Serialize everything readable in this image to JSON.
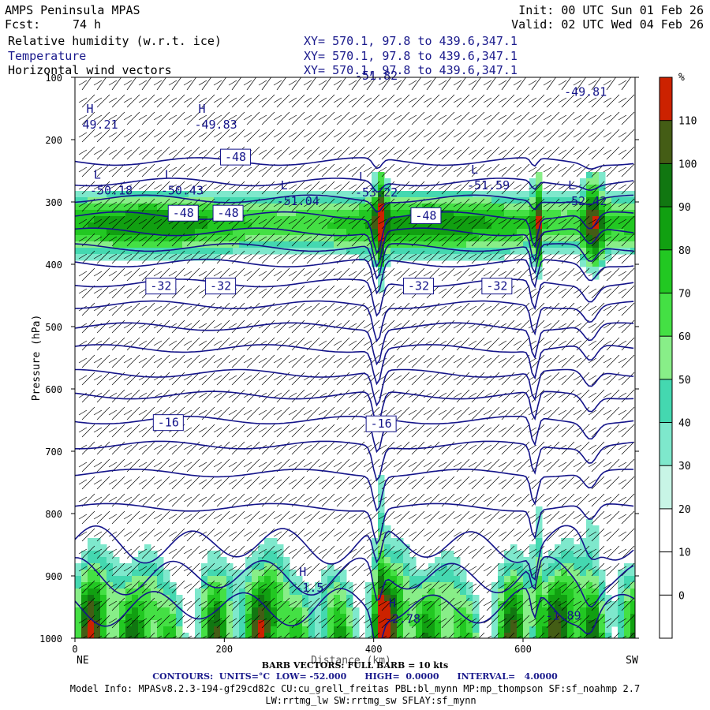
{
  "header": {
    "model": "AMPS Peninsula MPAS",
    "fcst_label": "Fcst:",
    "fcst_value": "74 h",
    "init": "Init: 00 UTC Sun 01 Feb 26",
    "valid": "Valid: 02 UTC Wed 04 Feb 26",
    "fields": [
      {
        "name": "Relative humidity (w.r.t. ice)",
        "xy": "XY= 570.1, 97.8 to 439.6,347.1"
      },
      {
        "name": "Temperature",
        "xy": "XY= 570.1, 97.8 to 439.6,347.1"
      },
      {
        "name": "Horizontal wind vectors",
        "xy": "XY= 570.1, 97.8 to 439.6,347.1"
      }
    ]
  },
  "chart_data": {
    "type": "heatmap",
    "ylabel": "Pressure (hPa)",
    "xlabel": "Distance (km)",
    "x_ticks": [
      0,
      200,
      400,
      600
    ],
    "y_ticks": [
      100,
      200,
      300,
      400,
      500,
      600,
      700,
      800,
      900,
      1000
    ],
    "xlim": [
      0,
      750
    ],
    "ylim": [
      1000,
      100
    ],
    "x_end_labels": {
      "left": "NE",
      "right": "SW"
    },
    "colorbar": {
      "unit": "%",
      "levels": [
        0,
        10,
        20,
        30,
        40,
        50,
        60,
        70,
        80,
        90,
        100,
        110
      ],
      "colors": [
        "#ffffff",
        "#ffffff",
        "#ffffff",
        "#c8f5e6",
        "#7ee8cc",
        "#44d8b0",
        "#88ee88",
        "#44e044",
        "#22c822",
        "#11a011",
        "#117711",
        "#445d15",
        "#cc2200"
      ]
    },
    "temperature_labels": [
      {
        "text": "-48",
        "x": 215,
        "p": 228
      },
      {
        "text": "-48",
        "x": 145,
        "p": 318
      },
      {
        "text": "-48",
        "x": 205,
        "p": 318
      },
      {
        "text": "-48",
        "x": 470,
        "p": 322
      },
      {
        "text": "-32",
        "x": 115,
        "p": 435
      },
      {
        "text": "-32",
        "x": 195,
        "p": 435
      },
      {
        "text": "-32",
        "x": 460,
        "p": 435
      },
      {
        "text": "-32",
        "x": 565,
        "p": 435
      },
      {
        "text": "-16",
        "x": 125,
        "p": 654
      },
      {
        "text": "-16",
        "x": 410,
        "p": 656
      }
    ],
    "extrema": [
      {
        "type": "H",
        "value": "49.21",
        "x": 10,
        "p": 182
      },
      {
        "type": "H",
        "value": "-49.83",
        "x": 160,
        "p": 182
      },
      {
        "type": "L",
        "value": "-50.18",
        "x": 20,
        "p": 288
      },
      {
        "type": "L",
        "value": "-50.43",
        "x": 115,
        "p": 288
      },
      {
        "type": "L",
        "value": "-51.04",
        "x": 270,
        "p": 305
      },
      {
        "type": "L",
        "value": "-53.22",
        "x": 375,
        "p": 291
      },
      {
        "type": "L",
        "value": "-51.59",
        "x": 525,
        "p": 280
      },
      {
        "type": "L",
        "value": "-52.42",
        "x": 655,
        "p": 305
      },
      {
        "type": "",
        "value": "-51.82",
        "x": 375,
        "p": 104
      },
      {
        "type": "",
        "value": "-49.81",
        "x": 655,
        "p": 130
      },
      {
        "type": "H",
        "value": "-1.5",
        "x": 295,
        "p": 925
      },
      {
        "type": "H",
        "value": "-2.78",
        "x": 415,
        "p": 975
      },
      {
        "type": "",
        "value": "-1.89",
        "x": 630,
        "p": 970
      }
    ]
  },
  "footer": {
    "barb": "BARB VECTORS: FULL BARB = 10 kts",
    "contours": "CONTOURS:  UNITS=°C  LOW= -52.000      HIGH=  0.0000      INTERVAL=   4.0000",
    "model_info": "Model Info: MPASv8.2.3-194-gf29cd82c CU:cu_grell_freitas PBL:bl_mynn MP:mp_thompson SF:sf_noahmp 2.7",
    "model_info2": "LW:rrtmg_lw SW:rrtmg_sw SFLAY:sf_mynn"
  }
}
